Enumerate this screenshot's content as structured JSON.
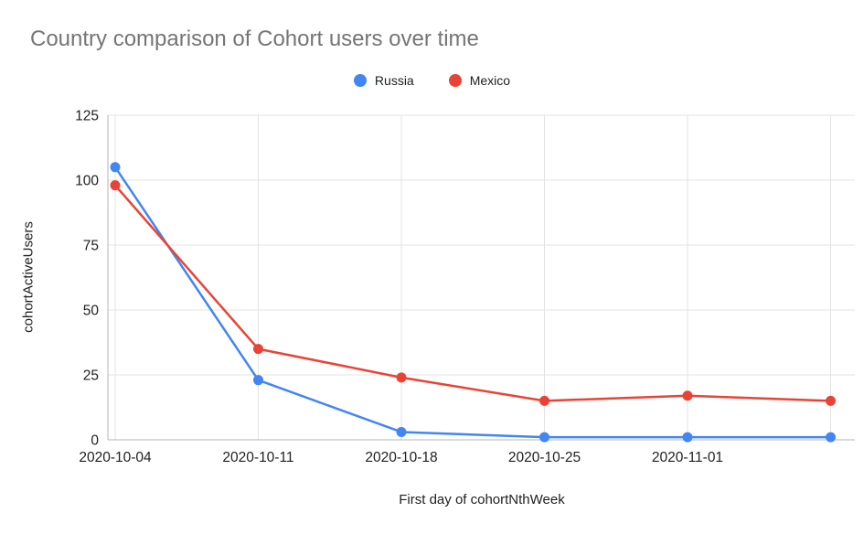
{
  "chart_data": {
    "type": "line",
    "title": "Country comparison of Cohort users over time",
    "xlabel": "First day of cohortNthWeek",
    "ylabel": "cohortActiveUsers",
    "x_tick_labels": [
      "2020-10-04",
      "2020-10-11",
      "2020-10-18",
      "2020-10-25",
      "2020-11-01"
    ],
    "yticks": [
      0,
      25,
      50,
      75,
      100,
      125
    ],
    "ylim": [
      0,
      125
    ],
    "grid": true,
    "legend_position": "top-center",
    "series": [
      {
        "name": "Russia",
        "color": "#4285F4",
        "values": [
          105,
          23,
          3,
          1,
          1,
          1
        ]
      },
      {
        "name": "Mexico",
        "color": "#EA4335",
        "values": [
          98,
          35,
          24,
          15,
          17,
          15
        ]
      }
    ],
    "colors": {
      "title_text": "#757575",
      "tick_text": "#202124",
      "gridline": "#e3e3e3",
      "axis_line": "#b5b5b5",
      "background": "#ffffff"
    }
  }
}
